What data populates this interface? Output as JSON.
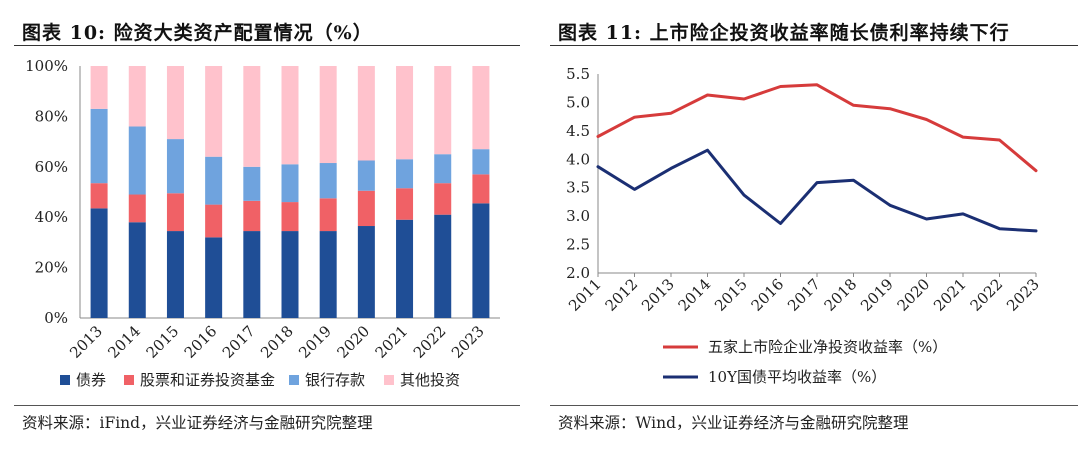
{
  "charts": {
    "left": {
      "title": "图表 10:  险资大类资产配置情况（%）",
      "source": "资料来源：iFind，兴业证券经济与金融研究院整理"
    },
    "right": {
      "title": "图表 11:  上市险企投资收益率随长债利率持续下行",
      "source": "资料来源：Wind，兴业证券经济与金融研究院整理"
    }
  },
  "chart_data": [
    {
      "type": "bar",
      "stacked": true,
      "title": "图表 10:  险资大类资产配置情况（%）",
      "categories": [
        "2013",
        "2014",
        "2015",
        "2016",
        "2017",
        "2018",
        "2019",
        "2020",
        "2021",
        "2022",
        "2023"
      ],
      "y_ticks": [
        "0%",
        "20%",
        "40%",
        "60%",
        "80%",
        "100%"
      ],
      "ylim": [
        0,
        100
      ],
      "legend_position": "bottom",
      "series": [
        {
          "name": "债券",
          "color": "#1f4e96",
          "values": [
            43.5,
            38,
            34.5,
            32,
            34.5,
            34.5,
            34.5,
            36.5,
            39,
            41,
            45.5
          ]
        },
        {
          "name": "股票和证券投资基金",
          "color": "#f06166",
          "values": [
            10,
            11,
            15,
            13,
            12,
            11.5,
            13,
            14,
            12.5,
            12.5,
            11.5
          ]
        },
        {
          "name": "银行存款",
          "color": "#6fa3de",
          "values": [
            29.5,
            27,
            21.5,
            19,
            13.5,
            15,
            14,
            12,
            11.5,
            11.5,
            10
          ]
        },
        {
          "name": "其他投资",
          "color": "#ffc2cc",
          "values": [
            17,
            24,
            29,
            36,
            40,
            39,
            38.5,
            37.5,
            37,
            35,
            33
          ]
        }
      ]
    },
    {
      "type": "line",
      "title": "图表 11:  上市险企投资收益率随长债利率持续下行",
      "x": [
        "2011",
        "2012",
        "2013",
        "2014",
        "2015",
        "2016",
        "2017",
        "2018",
        "2019",
        "2020",
        "2021",
        "2022",
        "2023"
      ],
      "y_ticks": [
        "2.0",
        "2.5",
        "3.0",
        "3.5",
        "4.0",
        "4.5",
        "5.0",
        "5.5"
      ],
      "ylim": [
        2.0,
        5.5
      ],
      "legend_position": "bottom",
      "series": [
        {
          "name": "五家上市险企业净投资收益率（%）",
          "color": "#d63b3b",
          "values": [
            4.4,
            4.74,
            4.81,
            5.13,
            5.06,
            5.28,
            5.31,
            4.95,
            4.89,
            4.7,
            4.39,
            4.34,
            3.8
          ]
        },
        {
          "name": "10Y国债平均收益率（%）",
          "color": "#1b2f73",
          "values": [
            3.87,
            3.47,
            3.84,
            4.16,
            3.37,
            2.87,
            3.59,
            3.63,
            3.19,
            2.95,
            3.04,
            2.78,
            2.74
          ]
        }
      ]
    }
  ]
}
